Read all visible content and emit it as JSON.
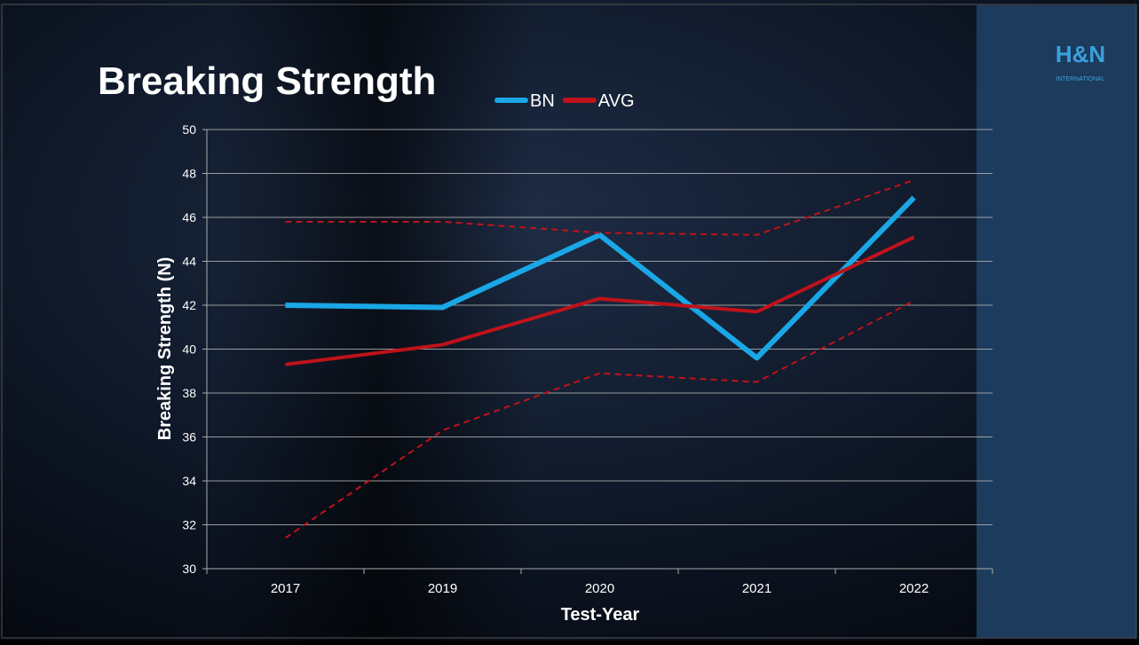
{
  "logo": {
    "mark": "H&N",
    "text": "INTERNATIONAL"
  },
  "chart_data": {
    "type": "line",
    "title": "Breaking Strength",
    "x_label": "Test-Year",
    "y_label": "Breaking Strength (N)",
    "categories": [
      "2017",
      "2019",
      "2020",
      "2021",
      "2022"
    ],
    "series": [
      {
        "name": "BN",
        "color": "#1aa7e6",
        "width": 6,
        "dashed": false,
        "values": [
          42.0,
          41.9,
          45.2,
          39.6,
          46.9
        ]
      },
      {
        "name": "AVG",
        "color": "#c0121a",
        "width": 4,
        "dashed": false,
        "values": [
          39.3,
          40.2,
          42.3,
          41.7,
          45.1
        ]
      },
      {
        "color": "#c0121a",
        "width": 2,
        "dashed": true,
        "values": [
          45.8,
          45.8,
          45.3,
          45.2,
          47.7
        ]
      },
      {
        "color": "#c0121a",
        "width": 2,
        "dashed": true,
        "values": [
          31.4,
          36.3,
          38.9,
          38.5,
          42.2
        ]
      }
    ],
    "ylim": [
      30,
      50
    ],
    "yticks": [
      30,
      32,
      34,
      36,
      38,
      40,
      42,
      44,
      46,
      48,
      50
    ],
    "grid": true
  }
}
